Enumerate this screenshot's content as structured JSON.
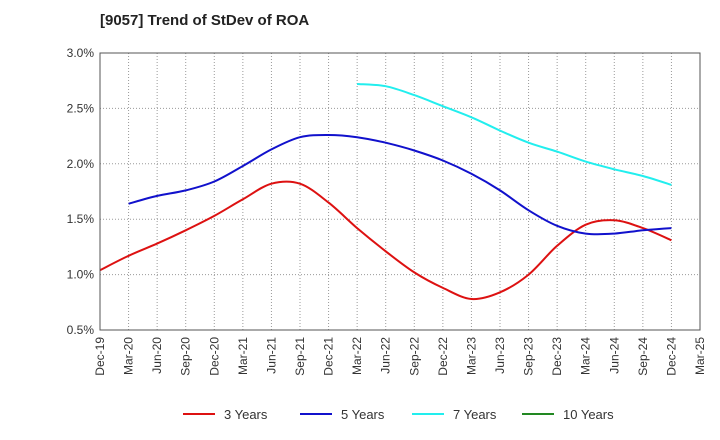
{
  "chart_data": {
    "type": "line",
    "title": "[9057]  Trend of StDev of ROA",
    "xlabel": "",
    "ylabel": "",
    "x": [
      "Dec-19",
      "Mar-20",
      "Jun-20",
      "Sep-20",
      "Dec-20",
      "Mar-21",
      "Jun-21",
      "Sep-21",
      "Dec-21",
      "Mar-22",
      "Jun-22",
      "Sep-22",
      "Dec-22",
      "Mar-23",
      "Jun-23",
      "Sep-23",
      "Dec-23",
      "Mar-24",
      "Jun-24",
      "Sep-24",
      "Dec-24",
      "Mar-25"
    ],
    "yticks": [
      "0.5%",
      "1.0%",
      "1.5%",
      "2.0%",
      "2.5%",
      "3.0%"
    ],
    "ylim": [
      0.5,
      3.0
    ],
    "grid": true,
    "legend_position": "bottom",
    "series": [
      {
        "name": "3 Years",
        "color": "#dd1111",
        "values": [
          1.04,
          1.17,
          1.28,
          1.4,
          1.53,
          1.68,
          1.82,
          1.82,
          1.65,
          1.42,
          1.21,
          1.02,
          0.88,
          0.78,
          0.84,
          1.0,
          1.26,
          1.45,
          1.49,
          1.42,
          1.31,
          null
        ]
      },
      {
        "name": "5 Years",
        "color": "#1111cc",
        "values": [
          null,
          1.64,
          1.71,
          1.76,
          1.84,
          1.98,
          2.13,
          2.24,
          2.26,
          2.24,
          2.19,
          2.12,
          2.03,
          1.91,
          1.76,
          1.58,
          1.44,
          1.37,
          1.37,
          1.4,
          1.42,
          null
        ]
      },
      {
        "name": "7 Years",
        "color": "#22eeee",
        "values": [
          null,
          null,
          null,
          null,
          null,
          null,
          null,
          null,
          null,
          2.72,
          2.7,
          2.62,
          2.52,
          2.42,
          2.3,
          2.19,
          2.11,
          2.02,
          1.95,
          1.89,
          1.81,
          null
        ]
      },
      {
        "name": "10 Years",
        "color": "#228822",
        "values": [
          null,
          null,
          null,
          null,
          null,
          null,
          null,
          null,
          null,
          null,
          null,
          null,
          null,
          null,
          null,
          null,
          null,
          null,
          null,
          null,
          null,
          null
        ]
      }
    ]
  }
}
